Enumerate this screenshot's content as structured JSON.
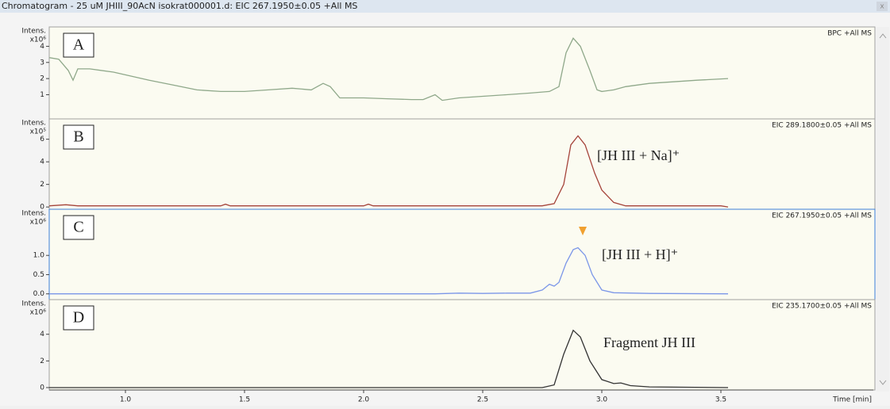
{
  "window": {
    "title": "Chromatogram - 25 uM JHIII_90AcN isokrat000001.d: EIC 267.1950±0.05 +All MS",
    "close": "x"
  },
  "chart_data": [
    {
      "type": "line",
      "panel_label": "A",
      "trace_label": "BPC +All MS",
      "y_label": "Intens.",
      "y_unit": "x10⁶",
      "color": "#8fa88a",
      "border_color": "#a0a0a0",
      "x": [
        0.68,
        0.72,
        0.76,
        0.78,
        0.8,
        0.85,
        0.95,
        1.1,
        1.2,
        1.3,
        1.4,
        1.5,
        1.6,
        1.7,
        1.78,
        1.83,
        1.86,
        1.9,
        1.95,
        2.0,
        2.1,
        2.2,
        2.25,
        2.3,
        2.33,
        2.4,
        2.5,
        2.6,
        2.7,
        2.78,
        2.82,
        2.85,
        2.88,
        2.91,
        2.95,
        2.98,
        3.0,
        3.05,
        3.1,
        3.2,
        3.3,
        3.4,
        3.53
      ],
      "values": [
        3.3,
        3.2,
        2.5,
        1.9,
        2.6,
        2.6,
        2.4,
        1.9,
        1.6,
        1.3,
        1.2,
        1.2,
        1.3,
        1.4,
        1.3,
        1.7,
        1.5,
        0.8,
        0.8,
        0.8,
        0.75,
        0.7,
        0.7,
        1.0,
        0.65,
        0.8,
        0.9,
        1.0,
        1.1,
        1.2,
        1.5,
        3.6,
        4.5,
        4.0,
        2.5,
        1.3,
        1.2,
        1.3,
        1.5,
        1.7,
        1.8,
        1.9,
        2.0
      ],
      "xlim": [
        0.68,
        4.14
      ],
      "ylim": [
        -0.5,
        5.2
      ],
      "yticks": [
        1,
        2,
        3,
        4
      ]
    },
    {
      "type": "line",
      "panel_label": "B",
      "trace_label": "EIC 289.1800±0.05 +All MS",
      "y_label": "Intens.",
      "y_unit": "x10⁵",
      "annotation": "[JH III + Na]⁺",
      "color": "#a5433a",
      "border_color": "#a0a0a0",
      "x": [
        0.68,
        0.75,
        0.8,
        1.0,
        1.4,
        1.42,
        1.44,
        1.8,
        2.0,
        2.02,
        2.04,
        2.5,
        2.75,
        2.8,
        2.84,
        2.87,
        2.9,
        2.93,
        2.97,
        3.0,
        3.05,
        3.1,
        3.3,
        3.5,
        3.53
      ],
      "values": [
        0.1,
        0.2,
        0.1,
        0.1,
        0.1,
        0.25,
        0.1,
        0.1,
        0.1,
        0.25,
        0.1,
        0.1,
        0.1,
        0.3,
        2,
        5.5,
        6.3,
        5.5,
        3,
        1.5,
        0.4,
        0.1,
        0.1,
        0.1,
        0
      ],
      "xlim": [
        0.68,
        4.14
      ],
      "ylim": [
        -0.2,
        7.8
      ],
      "yticks": [
        0,
        2,
        4,
        6
      ]
    },
    {
      "type": "line",
      "panel_label": "C",
      "trace_label": "EIC 267.1950±0.05 +All MS",
      "y_label": "Intens.",
      "y_unit": "x10⁶",
      "annotation": "[JH III + H]⁺",
      "color": "#7b96e8",
      "border_color": "#3c7fd8",
      "x": [
        0.68,
        2.3,
        2.4,
        2.5,
        2.6,
        2.7,
        2.75,
        2.78,
        2.8,
        2.82,
        2.85,
        2.88,
        2.9,
        2.93,
        2.96,
        3.0,
        3.05,
        3.2,
        3.53
      ],
      "values": [
        0,
        0,
        0.02,
        0.01,
        0.02,
        0.02,
        0.1,
        0.25,
        0.2,
        0.3,
        0.8,
        1.15,
        1.2,
        1.0,
        0.5,
        0.1,
        0.03,
        0.01,
        0
      ],
      "xlim": [
        0.68,
        4.14
      ],
      "ylim": [
        -0.15,
        2.2
      ],
      "yticks": [
        {
          "value": 0,
          "label": "0.0"
        },
        0.5,
        {
          "value": 1,
          "label": "1.0"
        }
      ]
    },
    {
      "type": "line",
      "panel_label": "D",
      "trace_label": "EIC 235.1700±0.05 +All MS",
      "y_label": "Intens.",
      "y_unit": "x10⁶",
      "annotation": "Fragment JH III",
      "color": "#333333",
      "border_color": "#a0a0a0",
      "x": [
        0.68,
        2.75,
        2.8,
        2.84,
        2.88,
        2.91,
        2.95,
        3.0,
        3.05,
        3.08,
        3.12,
        3.2,
        3.53
      ],
      "values": [
        0,
        0,
        0.2,
        2.5,
        4.3,
        3.8,
        2,
        0.6,
        0.3,
        0.35,
        0.15,
        0.05,
        0
      ],
      "xlim": [
        0.68,
        4.14
      ],
      "ylim": [
        -0.18,
        6.6
      ],
      "yticks": [
        0,
        2,
        4
      ],
      "x_label": "Time [min]",
      "xticks": [
        {
          "value": 1,
          "label": "1.0"
        },
        1.5,
        {
          "value": 2,
          "label": "2.0"
        },
        2.5,
        {
          "value": 3,
          "label": "3.0"
        },
        3.5
      ]
    }
  ]
}
